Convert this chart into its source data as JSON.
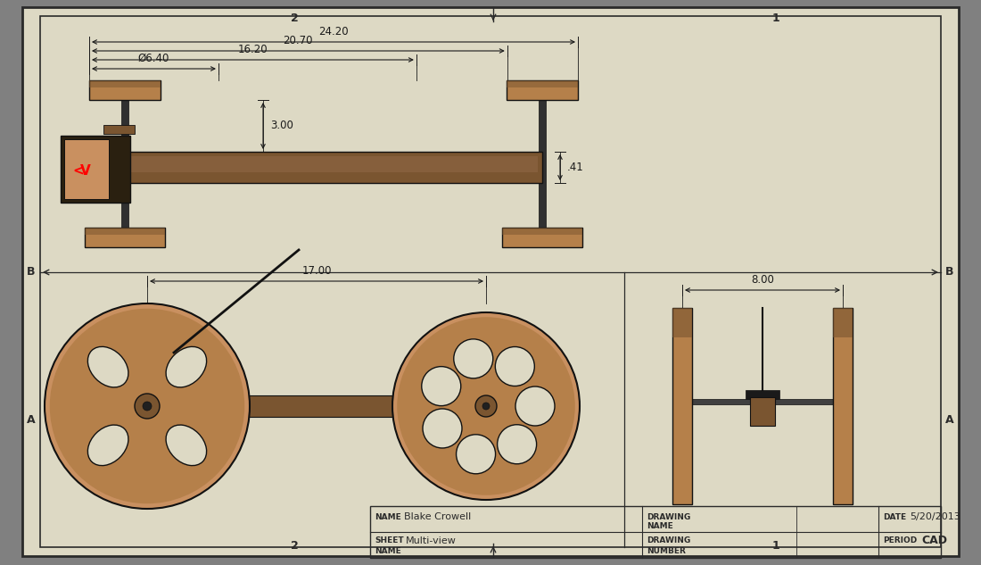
{
  "bg_color": "#ddd9c4",
  "border_color": "#2a2a2a",
  "wood_color": "#b5804a",
  "wood_dark": "#7a5530",
  "wood_light": "#c99060",
  "axle_color": "#5a4030",
  "dim_color": "#1a1a1a",
  "line_color": "#111111",
  "gray_bg": "#808080",
  "name": "Blake Crowell",
  "date": "5/20/2013",
  "sheet": "Multi-view",
  "period": "CAD",
  "dim_24_20": "24.20",
  "dim_20_70": "20.70",
  "dim_16_20": "16.20",
  "dim_6_40": "Ø6.40",
  "dim_3_00": "3.00",
  "dim_41": ".41",
  "dim_17_00": "17.00",
  "dim_8_00": "8.00"
}
